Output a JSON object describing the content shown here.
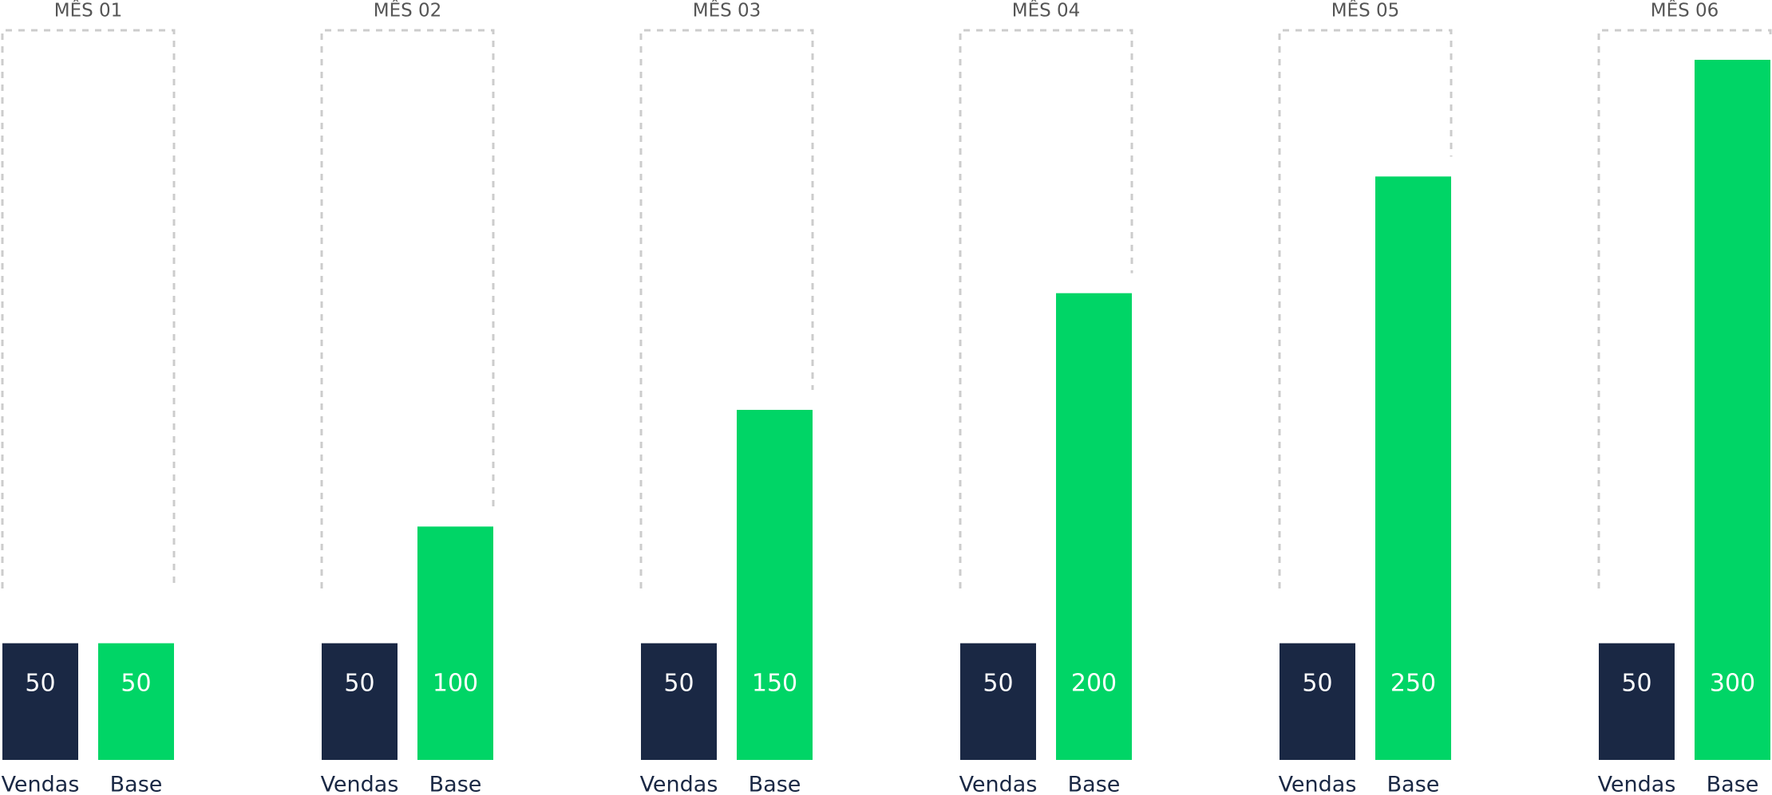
{
  "chart_data": {
    "type": "bar",
    "categories": [
      "MÊS 01",
      "MÊS 02",
      "MÊS 03",
      "MÊS 04",
      "MÊS 05",
      "MÊS 06"
    ],
    "series": [
      {
        "name": "Vendas",
        "color": "#1a2844",
        "values": [
          50,
          50,
          50,
          50,
          50,
          50
        ]
      },
      {
        "name": "Base",
        "color": "#00d566",
        "values": [
          50,
          100,
          150,
          200,
          250,
          300
        ]
      }
    ]
  }
}
